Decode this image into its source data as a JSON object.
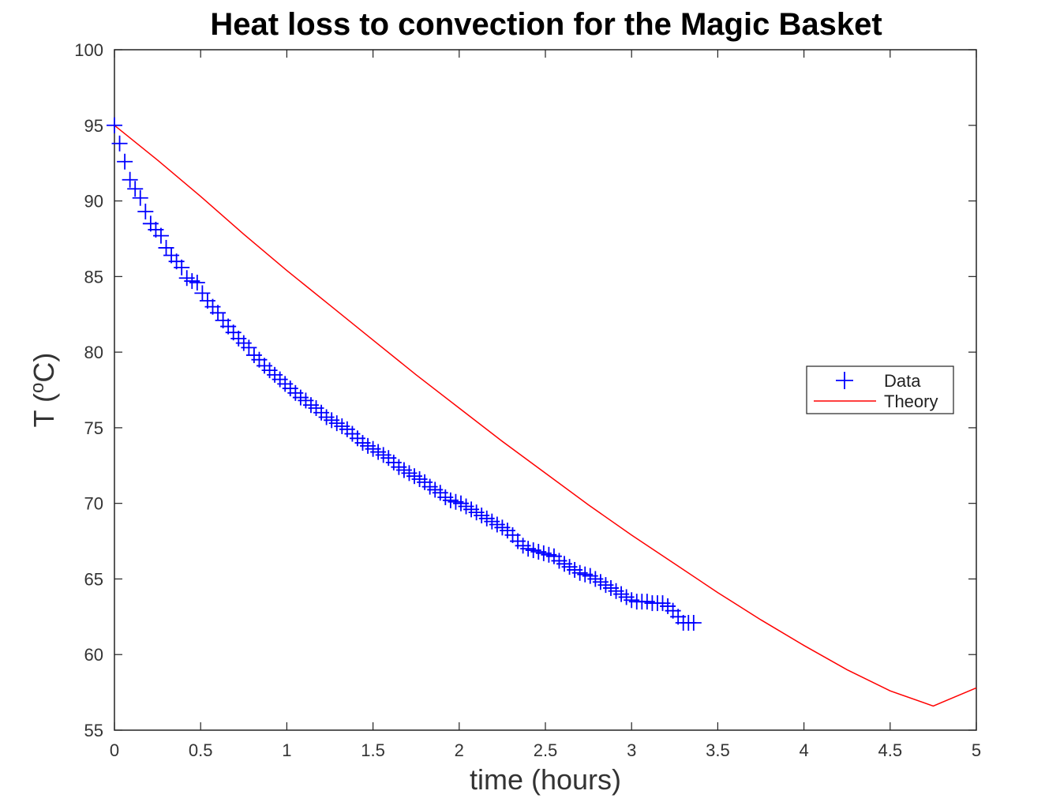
{
  "chart_data": {
    "type": "line",
    "title": "Heat loss to convection for the Magic Basket",
    "xlabel": "time (hours)",
    "ylabel": {
      "prefix": "T (",
      "sup": "o",
      "suffix": "C)"
    },
    "xlim": [
      0,
      5
    ],
    "ylim": [
      55,
      100
    ],
    "x_ticks": [
      0,
      0.5,
      1,
      1.5,
      2,
      2.5,
      3,
      3.5,
      4,
      4.5,
      5
    ],
    "x_tick_labels": [
      "0",
      "0.5",
      "1",
      "1.5",
      "2",
      "2.5",
      "3",
      "3.5",
      "4",
      "4.5",
      "5"
    ],
    "y_ticks": [
      55,
      60,
      65,
      70,
      75,
      80,
      85,
      90,
      95,
      100
    ],
    "y_tick_labels": [
      "55",
      "60",
      "65",
      "70",
      "75",
      "80",
      "85",
      "90",
      "95",
      "100"
    ],
    "grid": false,
    "legend_position": "right",
    "series": [
      {
        "name": "Data",
        "marker": "+",
        "color": "#0000ff",
        "x": [
          0.0,
          0.03,
          0.06,
          0.09,
          0.12,
          0.15,
          0.18,
          0.21,
          0.24,
          0.27,
          0.3,
          0.33,
          0.36,
          0.39,
          0.42,
          0.45,
          0.48,
          0.51,
          0.54,
          0.57,
          0.6,
          0.63,
          0.66,
          0.69,
          0.72,
          0.75,
          0.78,
          0.81,
          0.84,
          0.87,
          0.9,
          0.93,
          0.96,
          0.99,
          1.02,
          1.05,
          1.08,
          1.11,
          1.14,
          1.17,
          1.2,
          1.23,
          1.26,
          1.29,
          1.32,
          1.35,
          1.38,
          1.41,
          1.44,
          1.47,
          1.5,
          1.53,
          1.56,
          1.59,
          1.62,
          1.65,
          1.68,
          1.71,
          1.74,
          1.77,
          1.8,
          1.83,
          1.86,
          1.89,
          1.92,
          1.95,
          1.98,
          2.01,
          2.04,
          2.07,
          2.1,
          2.13,
          2.16,
          2.19,
          2.22,
          2.25,
          2.28,
          2.31,
          2.34,
          2.37,
          2.4,
          2.43,
          2.46,
          2.49,
          2.52,
          2.55,
          2.58,
          2.61,
          2.64,
          2.67,
          2.7,
          2.73,
          2.76,
          2.79,
          2.82,
          2.85,
          2.88,
          2.91,
          2.94,
          2.97,
          3.0,
          3.03,
          3.06,
          3.09,
          3.12,
          3.15,
          3.18,
          3.21,
          3.24,
          3.27,
          3.3,
          3.33,
          3.36
        ],
        "y": [
          95.0,
          93.8,
          92.6,
          91.4,
          90.8,
          90.2,
          89.3,
          88.5,
          88.1,
          87.7,
          86.9,
          86.4,
          86.0,
          85.6,
          84.9,
          84.7,
          84.6,
          83.9,
          83.4,
          83.0,
          82.6,
          82.1,
          81.7,
          81.3,
          80.9,
          80.6,
          80.3,
          79.8,
          79.5,
          79.1,
          78.8,
          78.5,
          78.2,
          77.9,
          77.6,
          77.3,
          77.0,
          76.8,
          76.5,
          76.3,
          76.0,
          75.7,
          75.5,
          75.3,
          75.1,
          74.9,
          74.6,
          74.3,
          74.0,
          73.8,
          73.6,
          73.4,
          73.2,
          73.0,
          72.7,
          72.4,
          72.2,
          72.0,
          71.8,
          71.6,
          71.4,
          71.1,
          70.9,
          70.7,
          70.4,
          70.2,
          70.1,
          70.0,
          69.8,
          69.6,
          69.4,
          69.2,
          69.0,
          68.8,
          68.6,
          68.4,
          68.2,
          67.9,
          67.5,
          67.2,
          67.0,
          66.9,
          66.8,
          66.7,
          66.6,
          66.5,
          66.2,
          66.0,
          65.8,
          65.6,
          65.4,
          65.3,
          65.2,
          65.0,
          64.8,
          64.6,
          64.4,
          64.2,
          64.0,
          63.8,
          63.6,
          63.5,
          63.5,
          63.5,
          63.4,
          63.4,
          63.4,
          63.2,
          62.9,
          62.5,
          62.1,
          62.1,
          62.1
        ]
      },
      {
        "name": "Theory",
        "marker": "",
        "color": "#ff0000",
        "x": [
          0,
          0.25,
          0.5,
          0.75,
          1.0,
          1.25,
          1.5,
          1.75,
          2.0,
          2.25,
          2.5,
          2.75,
          3.0,
          3.25,
          3.5,
          3.75,
          4.0,
          4.25,
          4.5,
          4.75,
          5.0
        ],
        "y": [
          95.0,
          92.7,
          90.3,
          87.8,
          85.4,
          83.1,
          80.8,
          78.5,
          76.3,
          74.1,
          72.0,
          69.9,
          67.9,
          66.0,
          64.1,
          62.3,
          60.6,
          59.0,
          57.6,
          56.6,
          57.8
        ]
      }
    ]
  }
}
